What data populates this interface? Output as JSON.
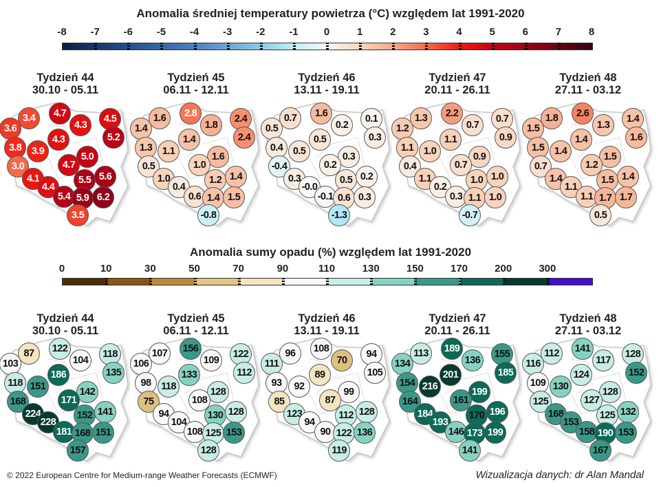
{
  "temperature": {
    "title": "Anomalia średniej temperatury powietrza (°C) względem lat 1991-2020",
    "scale_labels": [
      "-8",
      "-7",
      "-6",
      "-5",
      "-4",
      "-3",
      "-2",
      "-1",
      "0",
      "1",
      "2",
      "3",
      "4",
      "5",
      "6",
      "7",
      "8"
    ],
    "colors": {
      "-8": "#0a1f45",
      "-6": "#24508e",
      "-4": "#4a80c0",
      "-2": "#8ccde8",
      "-1": "#c2f0fa",
      "0": "#f8f8f4",
      "1": "#f8d4bc",
      "2": "#f6a88a",
      "3": "#f46a48",
      "4": "#ee1a10",
      "5": "#c80014",
      "6": "#9a0018",
      "8": "#380010"
    },
    "weeks": [
      {
        "label": "Tydzień 44",
        "dates": "30.10 - 05.11",
        "values": [
          "3.4",
          "4.7",
          "4.5",
          "3.6",
          "4.3",
          "5.2",
          "4.3",
          "3.8",
          "3.9",
          "5.0",
          "3.0",
          "4.7",
          "5.5",
          "5.6",
          "4.1",
          "4.4",
          "5.4",
          "5.9",
          "6.2",
          "3.5"
        ]
      },
      {
        "label": "Tydzień 45",
        "dates": "06.11 - 12.11",
        "values": [
          "1.6",
          "2.8",
          "2.4",
          "1.4",
          "1.8",
          "2.4",
          "1.4",
          "1.3",
          "1.1",
          "1.6",
          "0.5",
          "1.0",
          "1.2",
          "1.4",
          "1.0",
          "0.4",
          "0.6",
          "1.4",
          "1.5",
          "-0.8"
        ]
      },
      {
        "label": "Tydzień 46",
        "dates": "13.11 - 19.11",
        "values": [
          "0.7",
          "1.6",
          "0.1",
          "0.5",
          "0.2",
          "0.3",
          "0.5",
          "0.4",
          "0.5",
          "0.3",
          "-0.4",
          "0.2",
          "0.5",
          "0.2",
          "0.3",
          "-0.0",
          "-0.1",
          "0.6",
          "0.3",
          "-1.3"
        ]
      },
      {
        "label": "Tydzień 47",
        "dates": "20.11 - 26.11",
        "values": [
          "1.3",
          "2.2",
          "0.7",
          "1.2",
          "0.7",
          "0.9",
          "1.1",
          "1.1",
          "1.0",
          "0.9",
          "0.4",
          "0.7",
          "1.0",
          "1.0",
          "1.1",
          "0.2",
          "0.3",
          "1.1",
          "1.0",
          "-0.7"
        ]
      },
      {
        "label": "Tydzień 48",
        "dates": "27.11 - 03.12",
        "values": [
          "1.8",
          "2.6",
          "1.4",
          "1.5",
          "1.3",
          "1.6",
          "1.4",
          "1.5",
          "1.4",
          "1.5",
          "0.7",
          "1.2",
          "1.5",
          "1.4",
          "1.4",
          "1.1",
          "1.1",
          "1.7",
          "1.7",
          "0.5"
        ]
      }
    ]
  },
  "precipitation": {
    "title": "Anomalia sumy opadu (%) względem lat 1991-2020",
    "scale_labels": [
      "0",
      "10",
      "30",
      "50",
      "70",
      "90",
      "110",
      "130",
      "150",
      "170",
      "200",
      "300"
    ],
    "bin_colors": [
      "#4a2e0c",
      "#8a5418",
      "#c0883c",
      "#e2c484",
      "#f4e4c0",
      "#f8f8f8",
      "#c8ece6",
      "#86d2c2",
      "#3a9888",
      "#0c6a58",
      "#063a30",
      "#4010c8"
    ],
    "weeks": [
      {
        "label": "Tydzień 44",
        "dates": "30.10 - 05.11",
        "values": [
          "87",
          "122",
          "118",
          "103",
          "104",
          "135",
          "186",
          "118",
          "151",
          "142",
          "168",
          "171",
          "152",
          "141",
          "224",
          "228",
          "181",
          "168",
          "151",
          "157"
        ]
      },
      {
        "label": "Tydzień 45",
        "dates": "06.11 - 12.11",
        "values": [
          "107",
          "156",
          "122",
          "106",
          "109",
          "112",
          "133",
          "98",
          "118",
          "128",
          "75",
          "108",
          "130",
          "128",
          "94",
          "104",
          "108",
          "125",
          "153",
          "128"
        ]
      },
      {
        "label": "Tydzień 46",
        "dates": "13.11 - 19.11",
        "values": [
          "96",
          "108",
          "94",
          "111",
          "70",
          "105",
          "89",
          "93",
          "92",
          "99",
          "85",
          "87",
          "112",
          "128",
          "123",
          "94",
          "90",
          "122",
          "136",
          "119"
        ]
      },
      {
        "label": "Tydzień 47",
        "dates": "20.11 - 26.11",
        "values": [
          "113",
          "189",
          "155",
          "134",
          "136",
          "185",
          "201",
          "154",
          "216",
          "199",
          "164",
          "161",
          "170",
          "196",
          "184",
          "193",
          "146",
          "173",
          "199",
          "141"
        ]
      },
      {
        "label": "Tydzień 48",
        "dates": "27.11 - 03.12",
        "values": [
          "112",
          "141",
          "128",
          "116",
          "117",
          "152",
          "124",
          "109",
          "130",
          "128",
          "125",
          "127",
          "125",
          "132",
          "168",
          "153",
          "158",
          "190",
          "153",
          "167"
        ]
      }
    ]
  },
  "footer": {
    "copyright": "© 2022 European Centre for Medium-range Weather Forecasts (ECMWF)",
    "credit": "Wizualizacja danych: dr Alan Mandal"
  }
}
